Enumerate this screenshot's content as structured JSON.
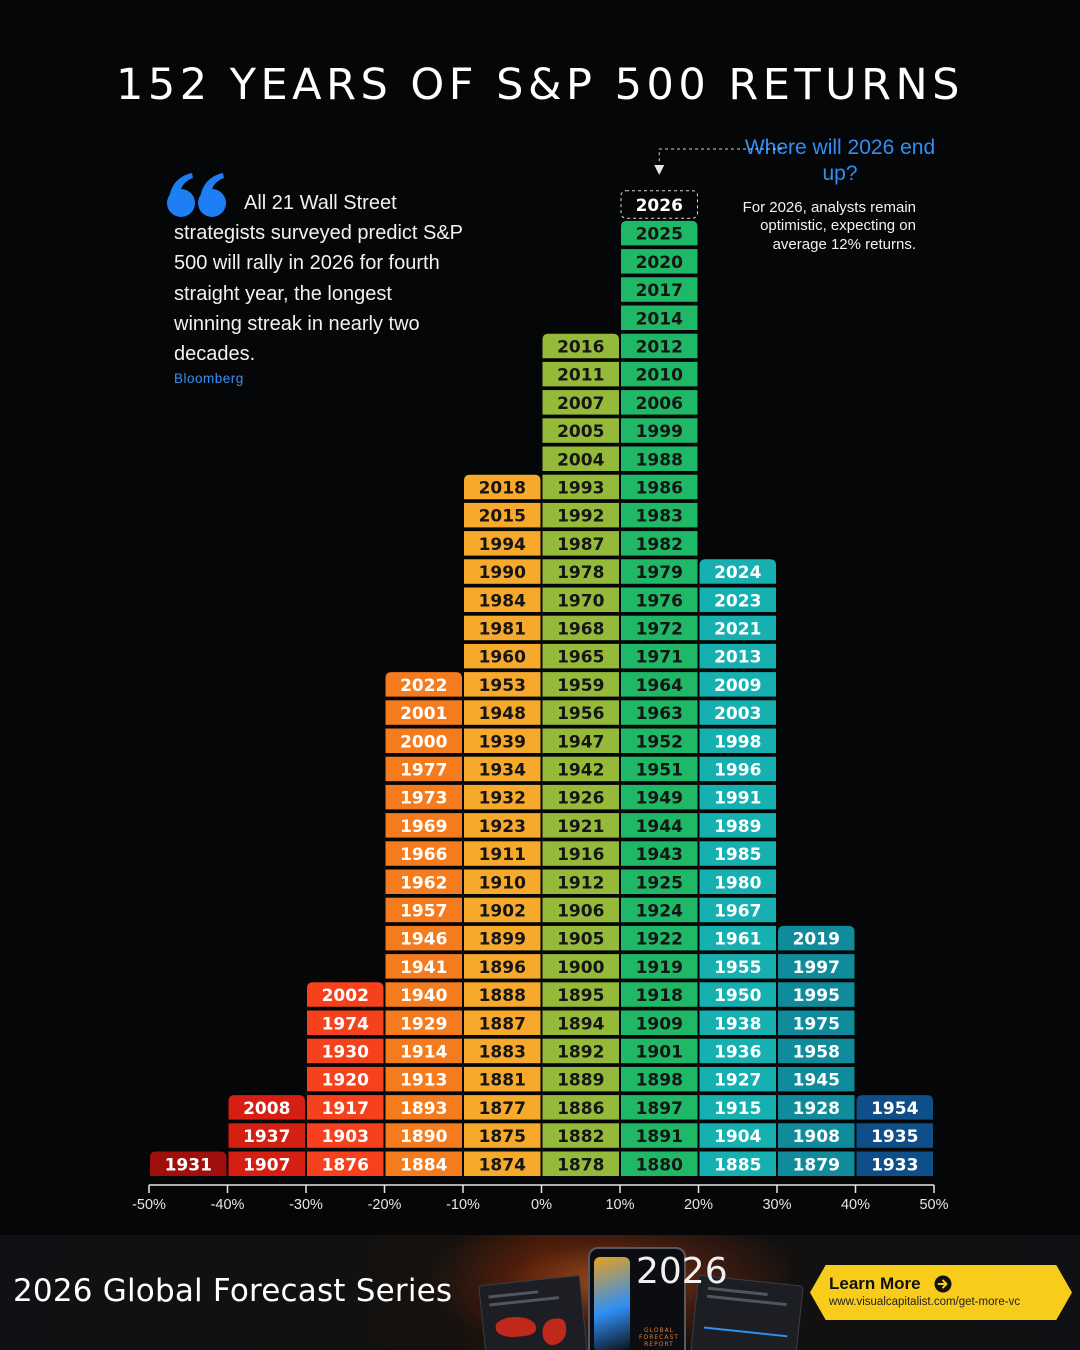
{
  "title": "152 YEARS OF S&P 500 RETURNS",
  "quote": {
    "text": "All 21 Wall Street strategists surveyed predict S&P 500 will rally in 2026 for fourth straight year, the longest winning streak in nearly two decades.",
    "source": "Bloomberg"
  },
  "callout": {
    "title": "Where will 2026 end up?",
    "text": "For 2026, analysts remain optimistic, expecting on average 12% returns.",
    "highlight_year": "2026"
  },
  "chart_data": {
    "type": "bar",
    "subtype": "histogram of years by annual return",
    "xlabel": "",
    "ylabel": "",
    "x_ticks": [
      "-50%",
      "-40%",
      "-30%",
      "-20%",
      "-10%",
      "0%",
      "10%",
      "20%",
      "30%",
      "40%",
      "50%"
    ],
    "xlim": [
      -50,
      50
    ],
    "bins": [
      {
        "range": [
          -50,
          -40
        ],
        "color": "#a00f0b",
        "years": [
          "1931"
        ]
      },
      {
        "range": [
          -40,
          -30
        ],
        "color": "#d41f12",
        "years": [
          "1907",
          "1937",
          "2008"
        ]
      },
      {
        "range": [
          -30,
          -20
        ],
        "color": "#f5411c",
        "years": [
          "1876",
          "1903",
          "1917",
          "1920",
          "1930",
          "1974",
          "2002"
        ]
      },
      {
        "range": [
          -20,
          -10
        ],
        "color": "#f57c1e",
        "years": [
          "1884",
          "1890",
          "1893",
          "1913",
          "1914",
          "1929",
          "1940",
          "1941",
          "1946",
          "1957",
          "1962",
          "1966",
          "1969",
          "1973",
          "1977",
          "2000",
          "2001",
          "2022"
        ]
      },
      {
        "range": [
          -10,
          0
        ],
        "color": "#f7a92b",
        "years": [
          "1874",
          "1875",
          "1877",
          "1881",
          "1883",
          "1887",
          "1888",
          "1896",
          "1899",
          "1902",
          "1910",
          "1911",
          "1923",
          "1932",
          "1934",
          "1939",
          "1948",
          "1953",
          "1960",
          "1981",
          "1984",
          "1990",
          "1994",
          "2015",
          "2018"
        ]
      },
      {
        "range": [
          0,
          10
        ],
        "color": "#95ba3a",
        "years": [
          "1878",
          "1882",
          "1886",
          "1889",
          "1892",
          "1894",
          "1895",
          "1900",
          "1905",
          "1906",
          "1912",
          "1916",
          "1921",
          "1926",
          "1942",
          "1947",
          "1956",
          "1959",
          "1965",
          "1968",
          "1970",
          "1978",
          "1987",
          "1992",
          "1993",
          "2004",
          "2005",
          "2007",
          "2011",
          "2016"
        ]
      },
      {
        "range": [
          10,
          20
        ],
        "color": "#1fb866",
        "years": [
          "1880",
          "1891",
          "1897",
          "1898",
          "1901",
          "1909",
          "1918",
          "1919",
          "1922",
          "1924",
          "1925",
          "1943",
          "1944",
          "1949",
          "1951",
          "1952",
          "1963",
          "1964",
          "1971",
          "1972",
          "1976",
          "1979",
          "1982",
          "1983",
          "1986",
          "1988",
          "1999",
          "2006",
          "2010",
          "2012",
          "2014",
          "2017",
          "2020",
          "2025"
        ]
      },
      {
        "range": [
          20,
          30
        ],
        "color": "#16b0b0",
        "years": [
          "1885",
          "1904",
          "1915",
          "1927",
          "1936",
          "1938",
          "1950",
          "1955",
          "1961",
          "1967",
          "1980",
          "1985",
          "1989",
          "1991",
          "1996",
          "1998",
          "2003",
          "2009",
          "2013",
          "2021",
          "2023",
          "2024"
        ]
      },
      {
        "range": [
          30,
          40
        ],
        "color": "#108b9c",
        "years": [
          "1879",
          "1908",
          "1928",
          "1945",
          "1958",
          "1975",
          "1995",
          "1997",
          "2019"
        ]
      },
      {
        "range": [
          40,
          50
        ],
        "color": "#0e4f8a",
        "years": [
          "1933",
          "1935",
          "1954"
        ]
      }
    ]
  },
  "banner": {
    "title": "2026 Global Forecast Series",
    "report_year": "2026",
    "report_caption": "GLOBAL FORECAST REPORT",
    "cta_label": "Learn More",
    "cta_url": "www.visualcapitalist.com/get-more-vc"
  }
}
